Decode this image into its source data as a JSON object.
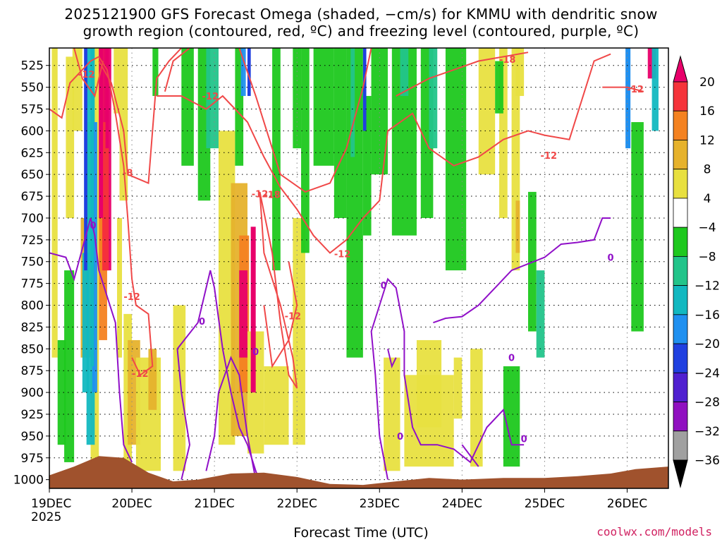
{
  "chart_data": {
    "type": "heatmap",
    "title_line1": "2025121900 GFS Forecast Omega (shaded, −cm/s) for KMMU with dendritic snow",
    "title_line2": "growth region (contoured, red, ºC) and freezing level (contoured, purple, ºC)",
    "xlabel": "Forecast Time (UTC)",
    "credit": "coolwx.com/models",
    "x_ticks": [
      "19DEC",
      "20DEC",
      "21DEC",
      "22DEC",
      "23DEC",
      "24DEC",
      "25DEC",
      "26DEC"
    ],
    "x_tick_year": "2025",
    "x_range_days": [
      0,
      7.5
    ],
    "y_ticks": [
      "525",
      "550",
      "575",
      "600",
      "625",
      "650",
      "675",
      "700",
      "725",
      "750",
      "775",
      "800",
      "825",
      "850",
      "875",
      "900",
      "925",
      "950",
      "975",
      "1000"
    ],
    "y_range_hpa": [
      505,
      1010
    ],
    "grid": true,
    "colorbar": {
      "labels": [
        "20",
        "16",
        "12",
        "8",
        "4",
        "−4",
        "−8",
        "−12",
        "−16",
        "−20",
        "−24",
        "−28",
        "−32",
        "−36"
      ],
      "colors": [
        "#e8006a",
        "#f5333a",
        "#f48221",
        "#e6b22c",
        "#e8e040",
        "#ffffff",
        "#1ec81e",
        "#22c48a",
        "#12b8c0",
        "#2090f0",
        "#2040e0",
        "#5020d0",
        "#9010c0",
        "#a0a0a0",
        "#000000"
      ]
    },
    "contour_labels": {
      "red": [
        "-12",
        "-12",
        "-8",
        "-12",
        "-12",
        "-18",
        "-12",
        "-12",
        "-12",
        "-18",
        "-12",
        "-12"
      ],
      "purple": [
        "0",
        "0",
        "0",
        "0",
        "0",
        "0",
        "0",
        "0"
      ]
    },
    "colors": {
      "red_contour": "#f04848",
      "purple_contour": "#9010c8",
      "terrain": "#a0522d"
    }
  }
}
